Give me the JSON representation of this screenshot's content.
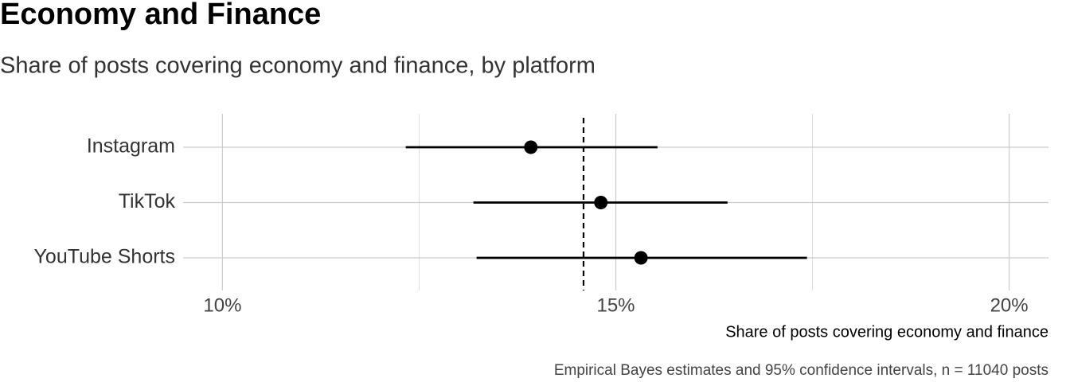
{
  "chart_data": {
    "type": "dotwhisker",
    "title": "Economy and Finance",
    "subtitle": "Share of posts covering economy and finance, by platform",
    "x_label": "Share of posts covering economy and finance",
    "caption": "Empirical Bayes estimates and 95% confidence intervals, n = 11040 posts",
    "categories": [
      "Instagram",
      "TikTok",
      "YouTube Shorts"
    ],
    "values": [
      13.92,
      14.81,
      15.32
    ],
    "lower": [
      12.33,
      13.19,
      13.23
    ],
    "upper": [
      15.53,
      16.42,
      17.43
    ],
    "reference_line": 14.59,
    "color": "#000000",
    "xlim": [
      9.5,
      20.5
    ],
    "xticks": [
      {
        "value": 10,
        "label": "10%"
      },
      {
        "value": 15,
        "label": "15%"
      },
      {
        "value": 20,
        "label": "20%"
      }
    ],
    "minor_xticks": [
      12.5,
      17.5
    ],
    "grid": true
  }
}
